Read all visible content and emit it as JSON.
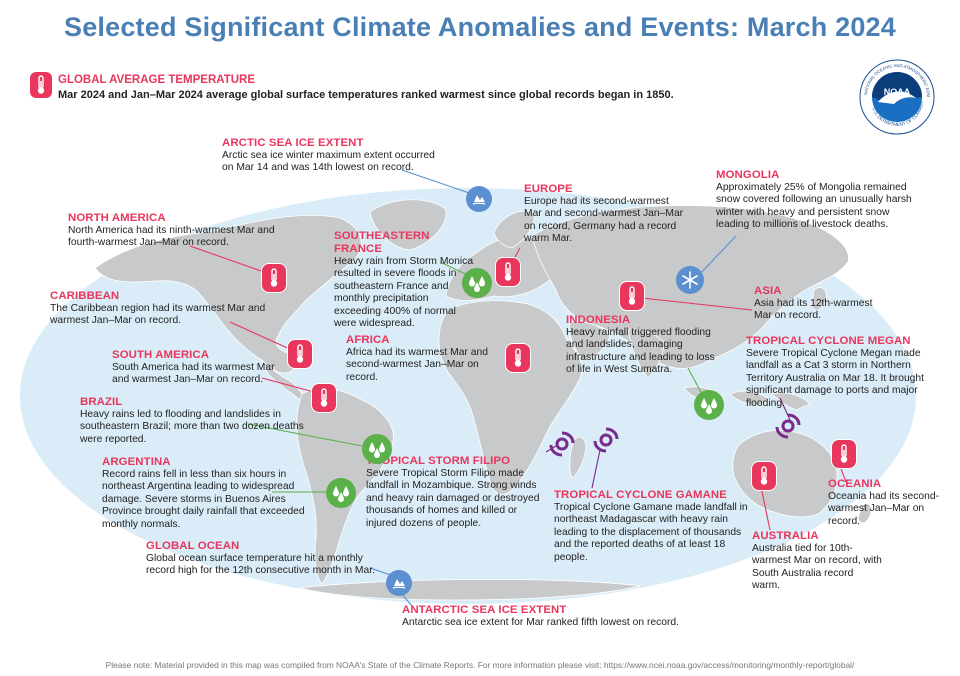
{
  "title": "Selected Significant Climate Anomalies and Events: March 2024",
  "global_temp": {
    "heading": "GLOBAL AVERAGE TEMPERATURE",
    "text": "Mar 2024 and Jan–Mar 2024 average global surface temperatures ranked warmest since global records began in 1850."
  },
  "logo": {
    "name": "NOAA",
    "ring_top": "NATIONAL OCEANIC AND ATMOSPHERIC ADMINISTRATION",
    "ring_bottom": "U.S. DEPARTMENT OF COMMERCE"
  },
  "events": {
    "arctic": {
      "heading": "ARCTIC SEA ICE EXTENT",
      "text": "Arctic sea ice winter maximum extent occurred on Mar 14 and was 14th lowest on record."
    },
    "north_america": {
      "heading": "NORTH AMERICA",
      "text": "North America had its ninth-warmest Mar and fourth-warmest Jan–Mar on record."
    },
    "caribbean": {
      "heading": "CARIBBEAN",
      "text": "The Caribbean region had its warmest Mar and warmest Jan–Mar on record."
    },
    "south_america": {
      "heading": "SOUTH AMERICA",
      "text": "South America had its warmest Mar and warmest Jan–Mar on record."
    },
    "brazil": {
      "heading": "BRAZIL",
      "text": "Heavy rains led to flooding and landslides in southeastern Brazil; more than two dozen deaths were reported."
    },
    "argentina": {
      "heading": "ARGENTINA",
      "text": "Record rains fell in less than six hours in northeast Argentina leading to widespread damage. Severe storms in Buenos Aires Province brought daily rainfall that exceeded monthly normals."
    },
    "global_ocean": {
      "heading": "GLOBAL OCEAN",
      "text": "Global ocean surface temperature hit a monthly record high for the 12th consecutive month in Mar."
    },
    "se_france": {
      "heading": "SOUTHEASTERN FRANCE",
      "text": "Heavy rain from Storm Monica resulted in severe floods in southeastern France and monthly precipitation exceeding 400% of normal were widespread."
    },
    "europe": {
      "heading": "EUROPE",
      "text": "Europe had its second-warmest Mar and second-warmest Jan–Mar on record, Germany had a record warm Mar."
    },
    "africa": {
      "heading": "AFRICA",
      "text": "Africa had its warmest Mar and second-warmest Jan–Mar on record."
    },
    "mongolia": {
      "heading": "MONGOLIA",
      "text": "Approximately 25% of Mongolia remained snow covered following an unusually harsh winter with heavy and persistent snow leading to millions of livestock deaths."
    },
    "asia": {
      "heading": "ASIA",
      "text": "Asia had its 12th-warmest Mar on record."
    },
    "indonesia": {
      "heading": "INDONESIA",
      "text": "Heavy rainfall triggered flooding and landslides, damaging infrastructure and leading to loss of life in West Sumatra."
    },
    "megan": {
      "heading": "TROPICAL CYCLONE MEGAN",
      "text": "Severe Tropical Cyclone Megan made landfall as a Cat 3 storm in Northern Territory Australia on Mar 18. It brought significant damage to ports and major flooding."
    },
    "filipo": {
      "heading": "TROPICAL STORM FILIPO",
      "text": "Severe Tropical Storm Filipo made landfall in Mozambique. Strong winds and heavy rain damaged or destroyed thousands of homes and killed or injured dozens of people."
    },
    "gamane": {
      "heading": "TROPICAL CYCLONE GAMANE",
      "text": "Tropical Cyclone Gamane made landfall in northeast Madagascar with heavy rain leading to the displacement of thousands and the reported deaths of at least 18 people."
    },
    "oceania": {
      "heading": "OCEANIA",
      "text": "Oceania had its second-warmest Jan–Mar on record."
    },
    "australia": {
      "heading": "AUSTRALIA",
      "text": "Australia tied for 10th-warmest Mar on record, with South Australia record warm."
    },
    "antarctic": {
      "heading": "ANTARCTIC SEA ICE EXTENT",
      "text": "Antarctic sea ice extent for Mar ranked fifth lowest on record."
    }
  },
  "colors": {
    "temperature": "#e8365d",
    "precipitation": "#5bb04a",
    "snow_ice": "#5b8fd0",
    "cyclone": "#7a2a8c",
    "ocean": "#d9ecf7",
    "land": "#c7c9cb",
    "title": "#4a7fb5"
  },
  "icons": {
    "temperature": "thermometer-icon",
    "precipitation": "raindrops-icon",
    "snow": "snowflake-icon",
    "sea_ice": "sea-ice-icon",
    "cyclone": "cyclone-icon"
  },
  "footnote": "Please note: Material provided in this map was compiled from NOAA's State of the Climate Reports. For more information please visit: https://www.ncei.noaa.gov/access/monitoring/monthly-report/global/"
}
